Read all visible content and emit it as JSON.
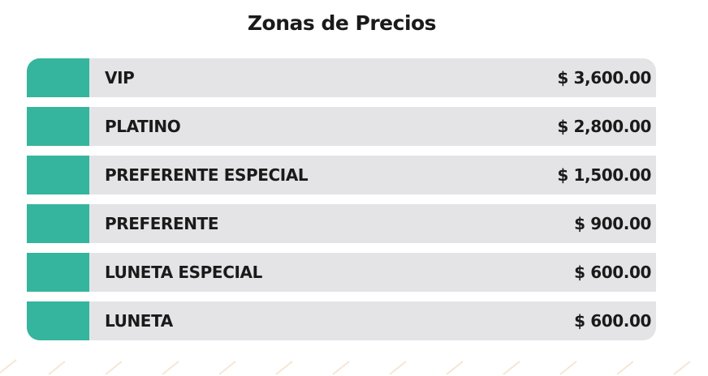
{
  "title": "Zonas de Precios",
  "zones": [
    {
      "name": "VIP",
      "price": "$ 3,600.00"
    },
    {
      "name": "PLATINO",
      "price": "$ 2,800.00"
    },
    {
      "name": "PREFERENTE ESPECIAL",
      "price": "$ 1,500.00"
    },
    {
      "name": "PREFERENTE",
      "price": "$ 900.00"
    },
    {
      "name": "LUNETA ESPECIAL",
      "price": "$ 600.00"
    },
    {
      "name": "LUNETA",
      "price": "$ 600.00"
    }
  ]
}
